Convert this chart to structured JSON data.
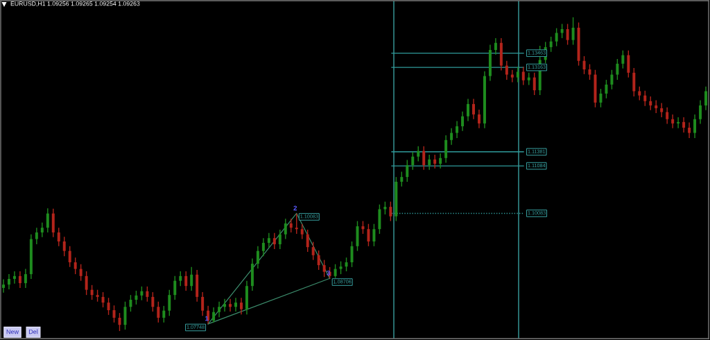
{
  "chart_data": {
    "type": "candlestick",
    "title": "EURUSD,H1 1.09256 1.09265 1.09254 1.09263",
    "ylim": [
      1.0744,
      1.1457
    ],
    "categories": [
      null,
      null,
      null,
      null,
      null,
      null,
      null,
      null,
      null,
      null,
      null,
      null,
      null,
      null,
      null,
      null,
      null,
      null,
      null,
      null,
      null,
      null,
      null,
      null,
      null,
      null,
      null,
      null,
      null,
      null,
      null,
      null,
      null,
      null,
      null,
      null,
      null,
      null,
      null,
      null,
      null,
      null,
      null,
      null,
      null,
      null,
      null,
      null,
      null,
      null,
      null,
      null,
      null,
      null,
      null,
      null,
      null,
      null,
      null,
      null,
      null,
      null,
      null,
      null,
      null,
      null,
      null,
      null,
      null,
      null,
      null,
      null,
      null,
      null,
      null,
      null,
      null,
      null,
      null,
      null,
      null,
      null,
      null,
      null,
      null,
      null,
      null,
      null,
      null,
      null,
      null,
      null,
      null,
      null,
      null,
      null,
      null,
      null,
      null,
      null,
      null,
      null,
      null,
      null,
      null,
      null,
      null,
      null,
      null,
      null,
      null,
      null,
      null,
      null,
      null,
      null,
      null,
      null,
      null,
      null,
      null,
      null,
      null,
      null,
      null,
      null,
      null,
      null
    ],
    "ohlc": [
      [
        1.0851,
        1.0869,
        1.0841,
        1.0858
      ],
      [
        1.0858,
        1.088,
        1.0848,
        1.087
      ],
      [
        1.087,
        1.0886,
        1.086,
        1.0876
      ],
      [
        1.0876,
        1.0886,
        1.0851,
        1.0861
      ],
      [
        1.0861,
        1.0891,
        1.0851,
        1.088
      ],
      [
        1.088,
        1.0964,
        1.087,
        1.0954
      ],
      [
        1.0954,
        1.0978,
        1.0943,
        1.0968
      ],
      [
        1.0968,
        1.0989,
        1.0958,
        1.0978
      ],
      [
        1.0978,
        1.1019,
        1.0968,
        1.1008
      ],
      [
        1.1008,
        1.1018,
        1.0958,
        1.0968
      ],
      [
        1.0968,
        1.0978,
        1.0939,
        1.0949
      ],
      [
        1.0949,
        1.0959,
        1.0918,
        1.0929
      ],
      [
        1.0929,
        1.0939,
        1.0895,
        1.0905
      ],
      [
        1.0905,
        1.0915,
        1.088,
        1.0891
      ],
      [
        1.0891,
        1.0901,
        1.0866,
        1.0876
      ],
      [
        1.0876,
        1.0886,
        1.0836,
        1.0847
      ],
      [
        1.0847,
        1.0857,
        1.0826,
        1.0836
      ],
      [
        1.0836,
        1.0847,
        1.0822,
        1.0832
      ],
      [
        1.0832,
        1.0842,
        1.081,
        1.082
      ],
      [
        1.082,
        1.083,
        1.0794,
        1.0804
      ],
      [
        1.0804,
        1.0814,
        1.0778,
        1.0788
      ],
      [
        1.0788,
        1.0798,
        1.076,
        1.0773
      ],
      [
        1.0773,
        1.0822,
        1.0763,
        1.0811
      ],
      [
        1.0811,
        1.0836,
        1.0801,
        1.0826
      ],
      [
        1.0826,
        1.0845,
        1.0816,
        1.0835
      ],
      [
        1.0835,
        1.0854,
        1.0825,
        1.0844
      ],
      [
        1.0844,
        1.0854,
        1.0822,
        1.0832
      ],
      [
        1.0832,
        1.0842,
        1.0801,
        1.0811
      ],
      [
        1.0811,
        1.0822,
        1.0778,
        1.0788
      ],
      [
        1.0788,
        1.0813,
        1.0778,
        1.0803
      ],
      [
        1.0803,
        1.0847,
        1.0792,
        1.0836
      ],
      [
        1.0836,
        1.0876,
        1.0826,
        1.0866
      ],
      [
        1.0866,
        1.0886,
        1.0855,
        1.0876
      ],
      [
        1.0876,
        1.0886,
        1.0845,
        1.0855
      ],
      [
        1.0855,
        1.0895,
        1.0845,
        1.0879
      ],
      [
        1.0879,
        1.0889,
        1.0822,
        1.0832
      ],
      [
        1.0832,
        1.0842,
        1.0792,
        1.0803
      ],
      [
        1.0803,
        1.0813,
        1.0775,
        1.0782
      ],
      [
        1.0782,
        1.081,
        1.0778,
        1.08
      ],
      [
        1.08,
        1.0822,
        1.0789,
        1.0811
      ],
      [
        1.0811,
        1.0828,
        1.0801,
        1.0817
      ],
      [
        1.0817,
        1.0828,
        1.0801,
        1.0811
      ],
      [
        1.0811,
        1.083,
        1.0801,
        1.082
      ],
      [
        1.082,
        1.083,
        1.0795,
        1.0806
      ],
      [
        1.0806,
        1.0866,
        1.0795,
        1.0855
      ],
      [
        1.0855,
        1.0913,
        1.0845,
        1.0902
      ],
      [
        1.0902,
        1.0939,
        1.0892,
        1.0929
      ],
      [
        1.0929,
        1.0956,
        1.0918,
        1.0946
      ],
      [
        1.0946,
        1.0967,
        1.0936,
        1.0956
      ],
      [
        1.0956,
        1.0967,
        1.0933,
        1.0943
      ],
      [
        1.0943,
        1.0974,
        1.0933,
        1.0964
      ],
      [
        1.0964,
        1.0997,
        1.0954,
        1.0987
      ],
      [
        1.0987,
        1.0997,
        1.0968,
        1.0978
      ],
      [
        1.0978,
        1.1008,
        1.0965,
        1.0975
      ],
      [
        1.0975,
        1.0986,
        1.0954,
        1.0964
      ],
      [
        1.0964,
        1.0974,
        1.0927,
        1.0937
      ],
      [
        1.0937,
        1.0948,
        1.091,
        1.092
      ],
      [
        1.092,
        1.093,
        1.0889,
        1.0899
      ],
      [
        1.0899,
        1.091,
        1.0874,
        1.0885
      ],
      [
        1.0885,
        1.0895,
        1.0871,
        1.0876
      ],
      [
        1.0876,
        1.0901,
        1.0872,
        1.0891
      ],
      [
        1.0891,
        1.0907,
        1.088,
        1.0896
      ],
      [
        1.0896,
        1.0915,
        1.0886,
        1.0905
      ],
      [
        1.0905,
        1.0949,
        1.0895,
        1.0939
      ],
      [
        1.0939,
        1.0992,
        1.0929,
        1.0981
      ],
      [
        1.0981,
        1.0992,
        1.0965,
        1.0975
      ],
      [
        1.0975,
        1.0986,
        1.0939,
        1.0949
      ],
      [
        1.0949,
        1.0986,
        1.0939,
        1.0975
      ],
      [
        1.0975,
        1.1027,
        1.0965,
        1.1017
      ],
      [
        1.1017,
        1.1033,
        1.1006,
        1.1022
      ],
      [
        1.1022,
        1.1033,
        1.0992,
        1.1002
      ],
      [
        1.1002,
        1.1085,
        1.0992,
        1.1075
      ],
      [
        1.1075,
        1.1096,
        1.1065,
        1.1085
      ],
      [
        1.1085,
        1.1121,
        1.1075,
        1.111
      ],
      [
        1.111,
        1.1138,
        1.11,
        1.1128
      ],
      [
        1.1128,
        1.115,
        1.1118,
        1.114
      ],
      [
        1.114,
        1.115,
        1.11,
        1.111
      ],
      [
        1.111,
        1.1132,
        1.11,
        1.1122
      ],
      [
        1.1122,
        1.1132,
        1.1103,
        1.1113
      ],
      [
        1.1113,
        1.1135,
        1.1103,
        1.1125
      ],
      [
        1.1125,
        1.1173,
        1.1115,
        1.1163
      ],
      [
        1.1163,
        1.1188,
        1.1153,
        1.1178
      ],
      [
        1.1178,
        1.1203,
        1.1167,
        1.1192
      ],
      [
        1.1192,
        1.1223,
        1.1182,
        1.1213
      ],
      [
        1.1213,
        1.125,
        1.1203,
        1.1239
      ],
      [
        1.1239,
        1.125,
        1.1207,
        1.1217
      ],
      [
        1.1217,
        1.1227,
        1.1188,
        1.1198
      ],
      [
        1.1198,
        1.1308,
        1.1188,
        1.1298
      ],
      [
        1.1298,
        1.1364,
        1.1288,
        1.1353
      ],
      [
        1.1353,
        1.1378,
        1.1343,
        1.1368
      ],
      [
        1.1368,
        1.1378,
        1.131,
        1.132
      ],
      [
        1.132,
        1.133,
        1.129,
        1.1301
      ],
      [
        1.1301,
        1.1311,
        1.1285,
        1.1295
      ],
      [
        1.1295,
        1.1317,
        1.1285,
        1.1307
      ],
      [
        1.1307,
        1.1317,
        1.1279,
        1.1289
      ],
      [
        1.1289,
        1.1305,
        1.1279,
        1.1295
      ],
      [
        1.1295,
        1.1305,
        1.1258,
        1.1268
      ],
      [
        1.1268,
        1.1362,
        1.1258,
        1.1332
      ],
      [
        1.1332,
        1.137,
        1.1325,
        1.1359
      ],
      [
        1.1359,
        1.1381,
        1.1349,
        1.1371
      ],
      [
        1.1371,
        1.1399,
        1.1361,
        1.1389
      ],
      [
        1.1389,
        1.1408,
        1.1378,
        1.1397
      ],
      [
        1.1397,
        1.1408,
        1.1364,
        1.1374
      ],
      [
        1.1374,
        1.1422,
        1.1364,
        1.14
      ],
      [
        1.14,
        1.1411,
        1.132,
        1.133
      ],
      [
        1.133,
        1.134,
        1.1302,
        1.1312
      ],
      [
        1.1312,
        1.1323,
        1.129,
        1.1301
      ],
      [
        1.1301,
        1.1311,
        1.1232,
        1.1242
      ],
      [
        1.1242,
        1.1271,
        1.1232,
        1.1261
      ],
      [
        1.1261,
        1.129,
        1.1251,
        1.128
      ],
      [
        1.128,
        1.1311,
        1.127,
        1.1301
      ],
      [
        1.1301,
        1.1334,
        1.129,
        1.1324
      ],
      [
        1.1324,
        1.1352,
        1.1314,
        1.1342
      ],
      [
        1.1342,
        1.1352,
        1.1295,
        1.1305
      ],
      [
        1.1305,
        1.1315,
        1.1255,
        1.1266
      ],
      [
        1.1266,
        1.1276,
        1.1247,
        1.1257
      ],
      [
        1.1257,
        1.1267,
        1.1235,
        1.1245
      ],
      [
        1.1245,
        1.1255,
        1.1226,
        1.1236
      ],
      [
        1.1236,
        1.1247,
        1.122,
        1.123
      ],
      [
        1.123,
        1.1241,
        1.1211,
        1.1222
      ],
      [
        1.1222,
        1.1232,
        1.1197,
        1.1207
      ],
      [
        1.1207,
        1.1217,
        1.1188,
        1.1198
      ],
      [
        1.1198,
        1.1211,
        1.1188,
        1.1201
      ],
      [
        1.1201,
        1.1211,
        1.1179,
        1.1189
      ],
      [
        1.1189,
        1.12,
        1.1167,
        1.1178
      ],
      [
        1.1178,
        1.1217,
        1.1167,
        1.1207
      ],
      [
        1.1207,
        1.1247,
        1.1197,
        1.1236
      ],
      [
        1.1236,
        1.1276,
        1.1226,
        1.1266
      ]
    ],
    "colors": [
      "#1e8c1e",
      "#1e8c1e",
      "#1e8c1e",
      "#b3241b",
      "#1e8c1e",
      "#1e8c1e",
      "#1e8c1e",
      "#1e8c1e",
      "#1e8c1e",
      "#b3241b",
      "#b3241b",
      "#b3241b",
      "#b3241b",
      "#b3241b",
      "#b3241b",
      "#b3241b",
      "#b3241b",
      "#b3241b",
      "#b3241b",
      "#b3241b",
      "#b3241b",
      "#b3241b",
      "#1e8c1e",
      "#1e8c1e",
      "#1e8c1e",
      "#1e8c1e",
      "#b3241b",
      "#b3241b",
      "#b3241b",
      "#1e8c1e",
      "#1e8c1e",
      "#1e8c1e",
      "#1e8c1e",
      "#b3241b",
      "#1e8c1e",
      "#b3241b",
      "#b3241b",
      "#b3241b",
      "#1e8c1e",
      "#1e8c1e",
      "#1e8c1e",
      "#b3241b",
      "#1e8c1e",
      "#b3241b",
      "#1e8c1e",
      "#1e8c1e",
      "#1e8c1e",
      "#1e8c1e",
      "#1e8c1e",
      "#b3241b",
      "#1e8c1e",
      "#1e8c1e",
      "#b3241b",
      "#b3241b",
      "#b3241b",
      "#b3241b",
      "#b3241b",
      "#b3241b",
      "#b3241b",
      "#b3241b",
      "#1e8c1e",
      "#1e8c1e",
      "#1e8c1e",
      "#1e8c1e",
      "#1e8c1e",
      "#b3241b",
      "#b3241b",
      "#1e8c1e",
      "#1e8c1e",
      "#1e8c1e",
      "#b3241b",
      "#1e8c1e",
      "#1e8c1e",
      "#1e8c1e",
      "#1e8c1e",
      "#1e8c1e",
      "#b3241b",
      "#1e8c1e",
      "#b3241b",
      "#1e8c1e",
      "#1e8c1e",
      "#1e8c1e",
      "#1e8c1e",
      "#1e8c1e",
      "#1e8c1e",
      "#b3241b",
      "#b3241b",
      "#1e8c1e",
      "#1e8c1e",
      "#1e8c1e",
      "#b3241b",
      "#b3241b",
      "#b3241b",
      "#1e8c1e",
      "#b3241b",
      "#1e8c1e",
      "#b3241b",
      "#1e8c1e",
      "#1e8c1e",
      "#1e8c1e",
      "#1e8c1e",
      "#1e8c1e",
      "#b3241b",
      "#1e8c1e",
      "#b3241b",
      "#b3241b",
      "#b3241b",
      "#b3241b",
      "#1e8c1e",
      "#1e8c1e",
      "#1e8c1e",
      "#1e8c1e",
      "#1e8c1e",
      "#b3241b",
      "#b3241b",
      "#b3241b",
      "#b3241b",
      "#b3241b",
      "#b3241b",
      "#b3241b",
      "#b3241b",
      "#b3241b",
      "#1e8c1e",
      "#b3241b",
      "#b3241b",
      "#1e8c1e",
      "#1e8c1e",
      "#1e8c1e"
    ],
    "series": [
      {
        "type": "line",
        "color": "#3c8c6c",
        "values": [
          null,
          null,
          null,
          null,
          null,
          null,
          null,
          null,
          null,
          null,
          null,
          null,
          null,
          null,
          null,
          null,
          null,
          null,
          null,
          null,
          null,
          null,
          null,
          null,
          null,
          null,
          null,
          null,
          null,
          null,
          null,
          null,
          null,
          null,
          null,
          null,
          null,
          1.07748,
          null,
          null,
          null,
          null,
          null,
          null,
          null,
          null,
          null,
          null,
          null,
          null,
          null,
          null,
          null,
          1.10083,
          null,
          null,
          null,
          null,
          null,
          1.08706,
          null,
          null,
          null,
          null,
          null,
          null,
          null,
          null,
          null,
          null,
          null,
          null,
          null,
          null,
          null,
          null,
          null,
          null,
          null,
          null,
          null,
          null,
          null,
          null,
          null,
          null,
          null,
          null,
          null,
          null,
          null,
          null,
          null,
          null,
          null,
          null,
          null,
          null,
          null,
          null,
          null,
          null,
          null,
          null,
          null,
          null,
          null,
          null,
          null,
          null,
          null,
          null,
          null,
          null,
          null,
          null,
          null,
          null,
          null,
          null,
          null,
          null,
          null,
          null,
          null,
          null,
          null,
          null
        ],
        "value_labels": [
          null,
          null,
          null,
          null,
          null,
          null,
          null,
          null,
          null,
          null,
          null,
          null,
          null,
          null,
          null,
          null,
          null,
          null,
          null,
          null,
          null,
          null,
          null,
          null,
          null,
          null,
          null,
          null,
          null,
          null,
          null,
          null,
          null,
          null,
          null,
          null,
          null,
          "1.07748",
          null,
          null,
          null,
          null,
          null,
          null,
          null,
          null,
          null,
          null,
          null,
          null,
          null,
          null,
          null,
          "1.10083",
          null,
          null,
          null,
          null,
          null,
          "1.08706",
          null,
          null,
          null,
          null,
          null,
          null,
          null,
          null,
          null,
          null,
          null,
          null,
          null,
          null,
          null,
          null,
          null,
          null,
          null,
          null,
          null,
          null,
          null,
          null,
          null,
          null,
          null,
          null,
          null,
          null,
          null,
          null,
          null,
          null,
          null,
          null,
          null,
          null,
          null,
          null,
          null,
          null,
          null,
          null,
          null,
          null,
          null,
          null,
          null,
          null,
          null,
          null,
          null,
          null,
          null,
          null,
          null,
          null,
          null,
          null,
          null,
          null,
          null,
          null,
          null,
          null,
          null,
          null
        ]
      },
      {
        "type": "line",
        "color": "#3c8c6c",
        "values": [
          null,
          null,
          null,
          null,
          null,
          null,
          null,
          null,
          null,
          null,
          null,
          null,
          null,
          null,
          null,
          null,
          null,
          null,
          null,
          null,
          null,
          null,
          null,
          null,
          null,
          null,
          null,
          null,
          null,
          null,
          null,
          null,
          null,
          null,
          null,
          null,
          null,
          1.0775,
          null,
          null,
          null,
          null,
          null,
          null,
          null,
          null,
          null,
          null,
          null,
          null,
          null,
          null,
          null,
          null,
          null,
          null,
          null,
          null,
          null,
          1.0871,
          null,
          null,
          null,
          null,
          null,
          null,
          null,
          null,
          null,
          null,
          null,
          null,
          null,
          null,
          null,
          null,
          null,
          null,
          null,
          null,
          null,
          null,
          null,
          null,
          null,
          null,
          null,
          null,
          null,
          null,
          null,
          null,
          null,
          null,
          null,
          null,
          null,
          null,
          null,
          null,
          null,
          null,
          null,
          null,
          null,
          null,
          null,
          null,
          null,
          null,
          null,
          null,
          null,
          null,
          null,
          null,
          null,
          null,
          null,
          null,
          null,
          null,
          null,
          null,
          null,
          null,
          null,
          null
        ]
      }
    ],
    "ref_lines": [
      {
        "axis": "y",
        "value": 1.13463,
        "label": "1.13463",
        "color": "#2f9a9a"
      },
      {
        "axis": "y",
        "value": 1.13163,
        "label": "1.13163",
        "color": "#2f9a9a"
      },
      {
        "axis": "y",
        "value": 1.11381,
        "label": "1.11381",
        "color": "#2f9a9a"
      },
      {
        "axis": "y",
        "value": 1.11084,
        "label": "1.11084",
        "color": "#2f9a9a"
      },
      {
        "axis": "y",
        "value": 1.10083,
        "label": "1.10083",
        "color": "#2f9a9a",
        "line_style": "dotted"
      }
    ],
    "annotations": [
      {
        "text": "1",
        "y": 1.0775
      },
      {
        "text": "2",
        "y": 1.1008
      },
      {
        "text": "3",
        "y": 1.0871
      },
      "New",
      "Del"
    ]
  }
}
